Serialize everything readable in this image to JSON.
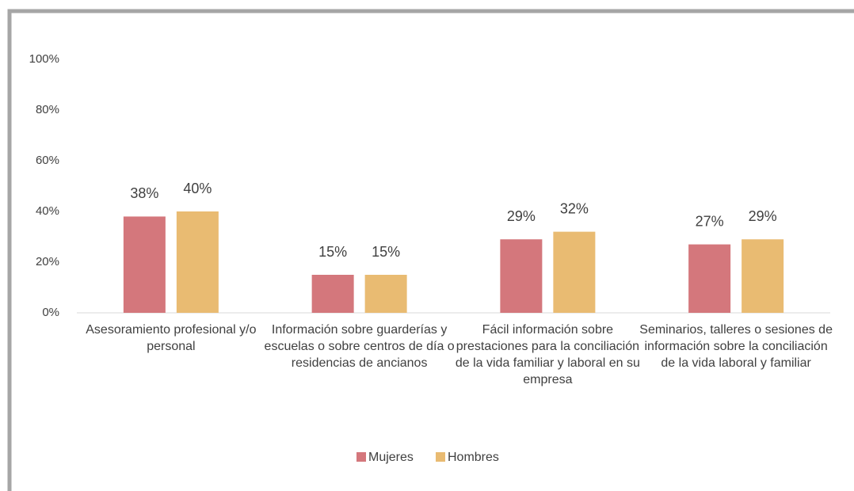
{
  "chart_data": {
    "type": "bar",
    "categories": [
      "Asesoramiento profesional y/o personal",
      "Información sobre guarderías y escuelas o sobre centros de día o residencias de ancianos",
      "Fácil información sobre prestaciones para la conciliación de la vida familiar y laboral en su empresa",
      "Seminarios, talleres o sesiones de información sobre la conciliación de la vida laboral y familiar"
    ],
    "series": [
      {
        "name": "Mujeres",
        "color": "#d4777c",
        "values": [
          38,
          15,
          29,
          27
        ],
        "value_labels": [
          "38%",
          "15%",
          "29%",
          "27%"
        ]
      },
      {
        "name": "Hombres",
        "color": "#e9bb72",
        "values": [
          40,
          15,
          32,
          29
        ],
        "value_labels": [
          "40%",
          "15%",
          "32%",
          "29%"
        ]
      }
    ],
    "ylim": [
      0,
      100
    ],
    "yticks": [
      {
        "value": 0,
        "label": "0%"
      },
      {
        "value": 20,
        "label": "20%"
      },
      {
        "value": 40,
        "label": "40%"
      },
      {
        "value": 60,
        "label": "60%"
      },
      {
        "value": 80,
        "label": "80%"
      },
      {
        "value": 100,
        "label": "100%"
      }
    ],
    "grid": false,
    "legend": "bottom"
  }
}
